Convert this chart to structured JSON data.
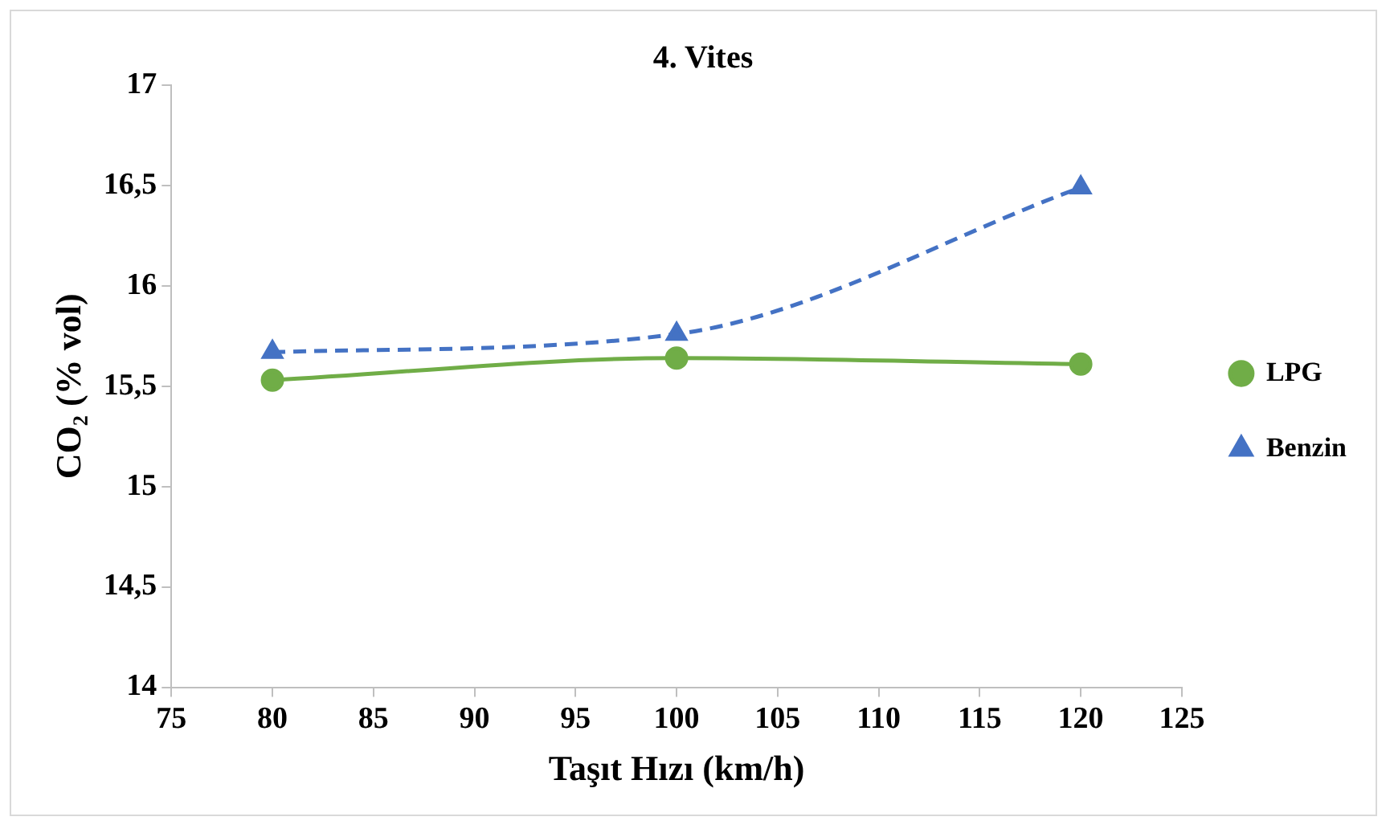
{
  "chart_data": {
    "type": "line",
    "title": "4. Vites",
    "xlabel": "Taşıt Hızı (km/h)",
    "ylabel": "CO₂ (% vol)",
    "x": [
      80,
      100,
      120
    ],
    "series": [
      {
        "name": "LPG",
        "color": "#70ad47",
        "values": [
          15.53,
          15.64,
          15.61
        ],
        "marker": "circle",
        "line_style": "solid"
      },
      {
        "name": "Benzin",
        "color": "#4472c4",
        "values": [
          15.67,
          15.76,
          16.49
        ],
        "marker": "triangle",
        "line_style": "dashed"
      }
    ],
    "xlim": [
      75,
      125
    ],
    "xticks": [
      75,
      80,
      85,
      90,
      95,
      100,
      105,
      110,
      115,
      120,
      125
    ],
    "ylim": [
      14,
      17
    ],
    "yticks": [
      14,
      {
        "value": 14.5,
        "label": "14,5"
      },
      15,
      {
        "value": 15.5,
        "label": "15,5"
      },
      16,
      {
        "value": 16.5,
        "label": "16,5"
      },
      17
    ],
    "grid": false,
    "legend": "right"
  }
}
